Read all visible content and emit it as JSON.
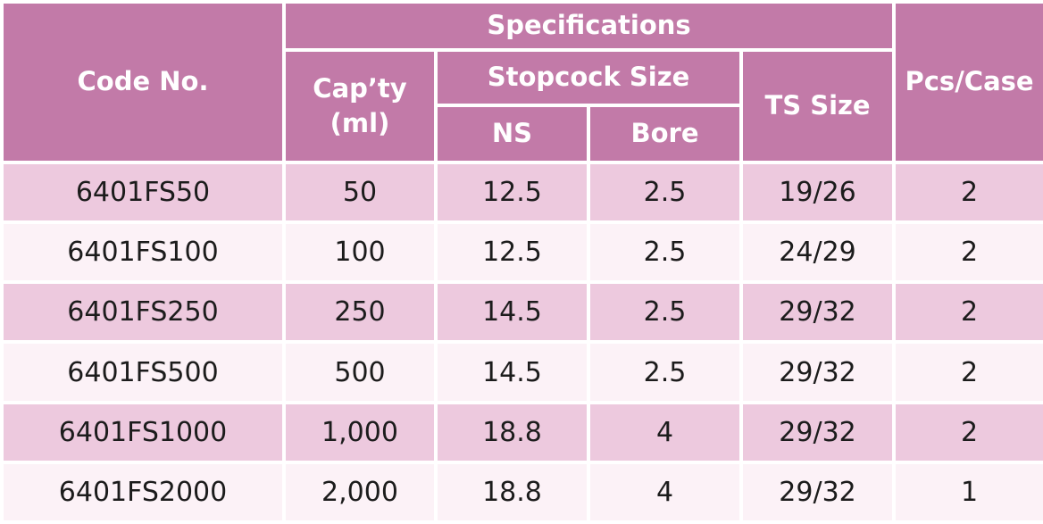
{
  "colors": {
    "header_bg": "#c27aa8",
    "header_text": "#ffffff",
    "row_odd_bg": "#edc9de",
    "row_even_bg": "#fcf2f7",
    "body_text": "#1c1c1c"
  },
  "headers": {
    "code_no": "Code No.",
    "specifications": "Specifications",
    "capacity_line1": "Cap’ty",
    "capacity_line2": "(ml)",
    "stopcock_size": "Stopcock Size",
    "ns": "NS",
    "bore": "Bore",
    "ts_size": "TS Size",
    "pcs_case": "Pcs/Case"
  },
  "rows": [
    {
      "code": "6401FS50",
      "capacity": "50",
      "ns": "12.5",
      "bore": "2.5",
      "ts": "19/26",
      "pcs": "2"
    },
    {
      "code": "6401FS100",
      "capacity": "100",
      "ns": "12.5",
      "bore": "2.5",
      "ts": "24/29",
      "pcs": "2"
    },
    {
      "code": "6401FS250",
      "capacity": "250",
      "ns": "14.5",
      "bore": "2.5",
      "ts": "29/32",
      "pcs": "2"
    },
    {
      "code": "6401FS500",
      "capacity": "500",
      "ns": "14.5",
      "bore": "2.5",
      "ts": "29/32",
      "pcs": "2"
    },
    {
      "code": "6401FS1000",
      "capacity": "1,000",
      "ns": "18.8",
      "bore": "4",
      "ts": "29/32",
      "pcs": "2"
    },
    {
      "code": "6401FS2000",
      "capacity": "2,000",
      "ns": "18.8",
      "bore": "4",
      "ts": "29/32",
      "pcs": "1"
    }
  ]
}
